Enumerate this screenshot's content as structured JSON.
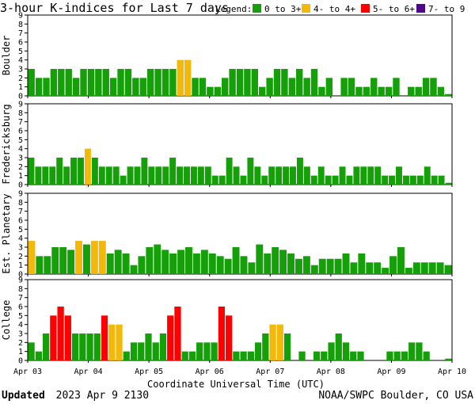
{
  "chart_data": {
    "type": "bar",
    "title": "3-hour K-indices for Last 7 days",
    "legend": {
      "label": "Legend:",
      "entries": [
        {
          "label": "0 to 3+",
          "color": "#159f08"
        },
        {
          "label": "4- to 4+",
          "color": "#f2b80a"
        },
        {
          "label": "5- to 6+",
          "color": "#ff0000"
        },
        {
          "label": "7- to 9",
          "color": "#50068c"
        }
      ]
    },
    "ylim": [
      0,
      9
    ],
    "yticks": [
      0,
      1,
      2,
      3,
      4,
      5,
      6,
      7,
      8,
      9
    ],
    "x_ticks": [
      "Apr 03",
      "Apr 04",
      "Apr 05",
      "Apr 06",
      "Apr 07",
      "Apr 08",
      "Apr 09",
      "Apr 10"
    ],
    "xlabel": "Coordinate Universal Time (UTC)",
    "grid": false,
    "panels": [
      {
        "name": "Boulder",
        "values": [
          3,
          2,
          2,
          3,
          3,
          3,
          2,
          3,
          3,
          3,
          3,
          2,
          3,
          3,
          2,
          2,
          3,
          3,
          3,
          3,
          4,
          4,
          2,
          2,
          1,
          1,
          2,
          3,
          3,
          3,
          3,
          1,
          2,
          3,
          3,
          2,
          3,
          2,
          3,
          1,
          2,
          0,
          2,
          2,
          1,
          1,
          2,
          1,
          1,
          2,
          0,
          1,
          1,
          2,
          2,
          1,
          0.2
        ]
      },
      {
        "name": "Fredericksburg",
        "values": [
          3,
          2,
          2,
          2,
          3,
          2,
          3,
          3,
          4,
          3,
          2,
          2,
          2,
          1,
          2,
          2,
          3,
          2,
          2,
          2,
          3,
          2,
          2,
          2,
          2,
          2,
          1,
          1,
          3,
          2,
          1,
          3,
          2,
          1,
          2,
          2,
          2,
          2,
          3,
          2,
          1,
          2,
          1,
          1,
          2,
          1,
          2,
          2,
          2,
          2,
          1,
          1,
          2,
          1,
          1,
          1,
          2,
          1,
          1,
          0.2
        ]
      },
      {
        "name": "Est. Planetary",
        "values": [
          3.7,
          2,
          2,
          3,
          3,
          2.7,
          3.7,
          3.3,
          3.7,
          3.7,
          2.3,
          2.7,
          2.3,
          1,
          2,
          3,
          3.3,
          2.7,
          2.3,
          2.7,
          3,
          2.3,
          2.7,
          2.3,
          2,
          1.7,
          3,
          2,
          1.3,
          3.3,
          2.3,
          3,
          2.7,
          2.3,
          1.7,
          2,
          1,
          1.7,
          1.7,
          1.7,
          2.3,
          1.3,
          2.3,
          1.3,
          1.3,
          0.7,
          2,
          3,
          0.7,
          1.3,
          1.3,
          1.3,
          1.3,
          1
        ]
      },
      {
        "name": "College",
        "values": [
          2,
          1,
          3,
          5,
          6,
          5,
          3,
          3,
          3,
          3,
          5,
          4,
          4,
          1,
          2,
          2,
          3,
          2,
          3,
          5,
          6,
          1,
          1,
          2,
          2,
          2,
          6,
          5,
          1,
          1,
          1,
          2,
          3,
          4,
          4,
          3,
          0,
          1,
          0,
          1,
          1,
          2,
          3,
          2,
          1,
          1,
          0,
          0,
          0,
          1,
          1,
          1,
          2,
          2,
          1,
          0,
          0,
          0.2
        ]
      }
    ]
  },
  "footer": {
    "updated_label": "Updated",
    "updated_value": "2023 Apr  9 2130",
    "credit": "NOAA/SWPC Boulder, CO USA"
  }
}
